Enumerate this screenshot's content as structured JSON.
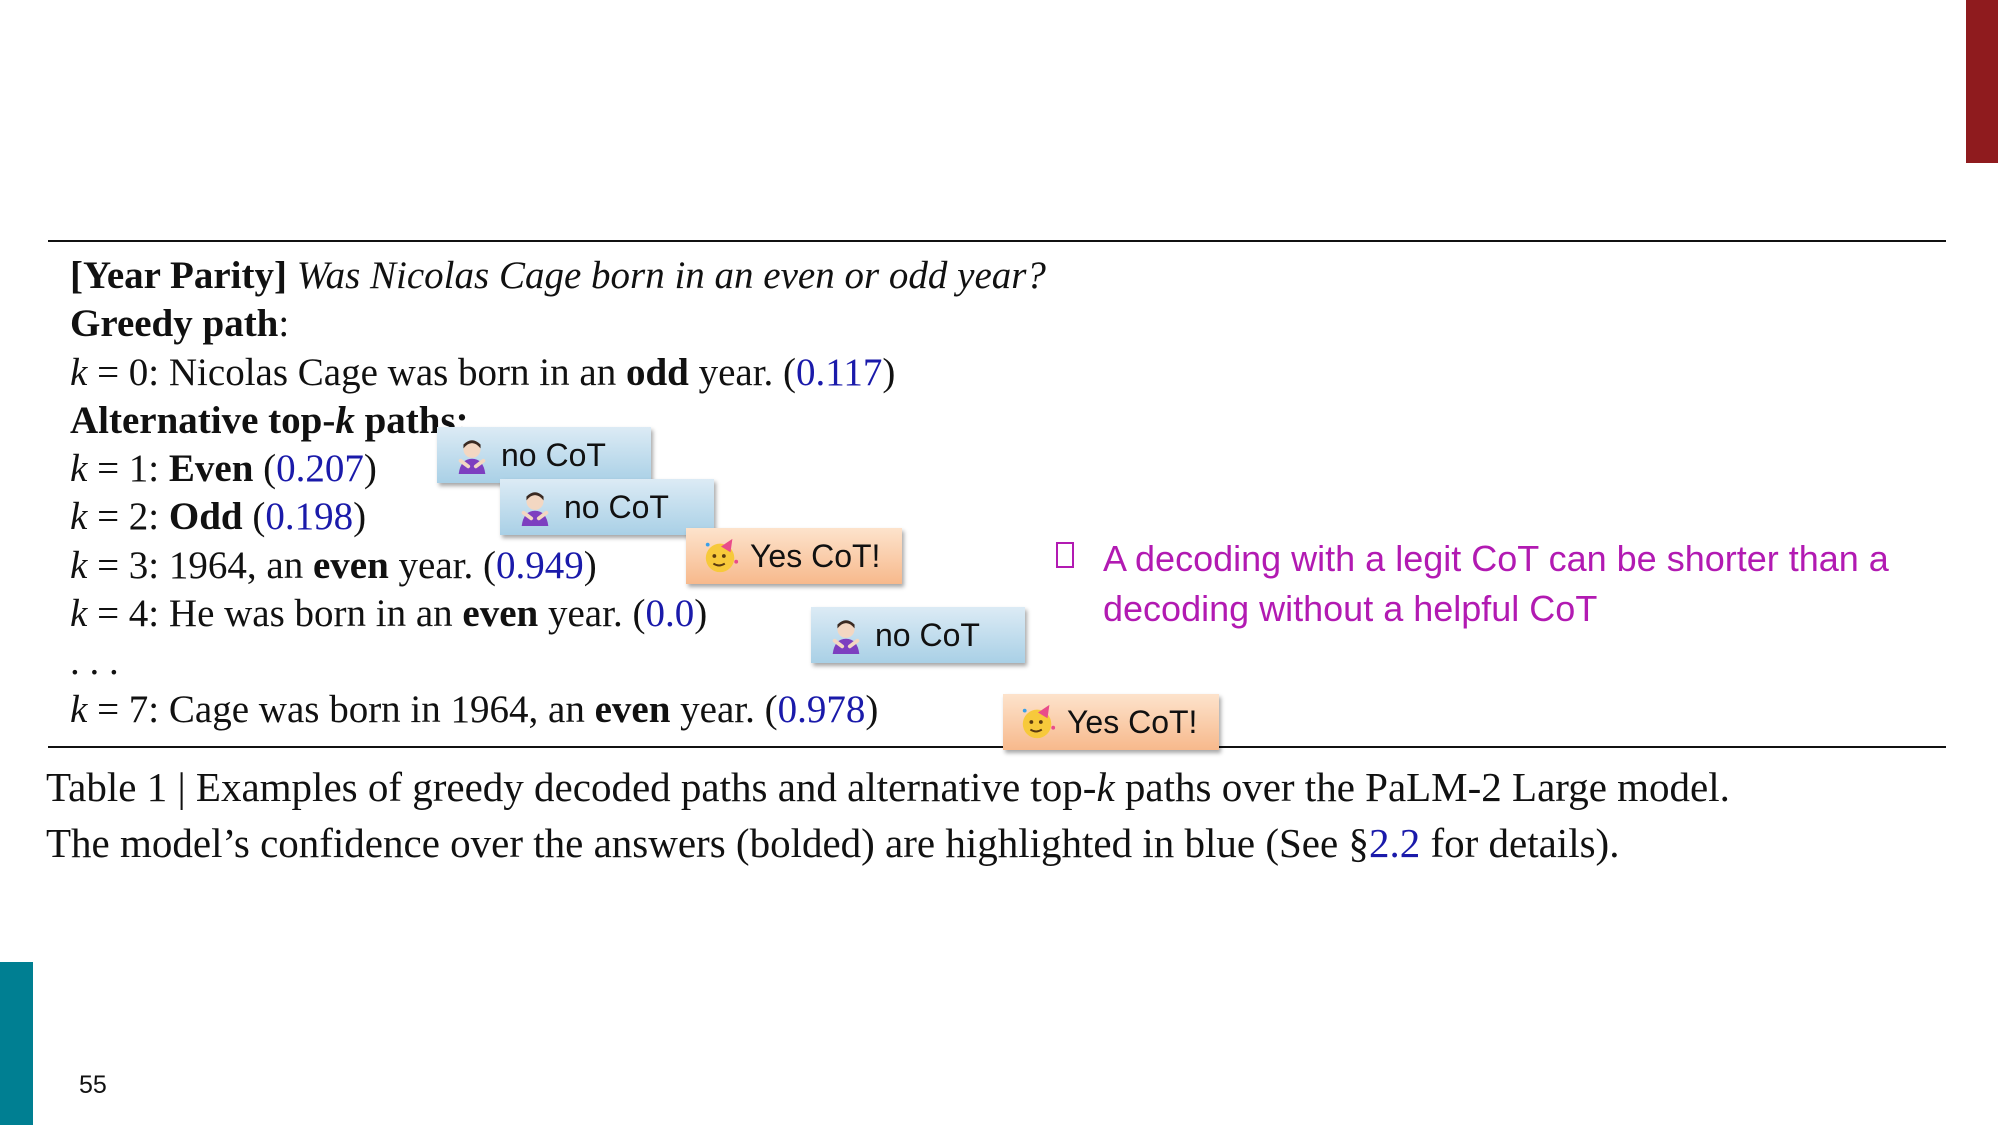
{
  "slide": {
    "page_number": "55"
  },
  "table": {
    "title_tag": "[Year Parity]",
    "question": "Was Nicolas Cage born in an even or odd year?",
    "greedy_label": "Greedy path",
    "greedy_colon": ":",
    "greedy": {
      "k": "k",
      "eq": " = 0: Nicolas Cage was born in an ",
      "answer": "odd",
      "rest": " year. (",
      "score": "0.117",
      "close": ")"
    },
    "alt_label_a": "Alternative top-",
    "alt_label_k": "k",
    "alt_label_b": " paths:",
    "rows": [
      {
        "k": "k",
        "eq": " = 1: ",
        "pre": "",
        "answer": "Even",
        "post": " (",
        "score": "0.207",
        "close": ")"
      },
      {
        "k": "k",
        "eq": " = 2: ",
        "pre": "",
        "answer": "Odd",
        "post": " (",
        "score": "0.198",
        "close": ")"
      },
      {
        "k": "k",
        "eq": " = 3: ",
        "pre": "1964, an ",
        "answer": "even",
        "post": " year. (",
        "score": "0.949",
        "close": ")"
      },
      {
        "k": "k",
        "eq": " = 4: ",
        "pre": "He was born in an ",
        "answer": "even",
        "post": " year. (",
        "score": "0.0",
        "close": ")"
      },
      {
        "k": "k",
        "eq": " = 7: ",
        "pre": "Cage was born in 1964, an ",
        "answer": "even",
        "post": " year. (",
        "score": "0.978",
        "close": ")"
      }
    ],
    "ellipsis": ". . ."
  },
  "caption": {
    "line1_a": "Table 1 | Examples of greedy decoded paths and alternative top-",
    "line1_k": "k",
    "line1_b": " paths over the PaLM-2 Large model.",
    "line2_a": "The model’s confidence over the answers (bolded) are highlighted in blue (See §",
    "line2_ref": "2.2",
    "line2_b": " for details)."
  },
  "stickers": {
    "no_cot": "no CoT",
    "yes_cot": "Yes CoT!",
    "no_icon": "shrugging-person-icon",
    "yes_icon": "party-face-icon"
  },
  "note": {
    "text": "A decoding with a legit CoT can be shorter than a decoding without a helpful CoT"
  },
  "colors": {
    "answer_score": "#1a1aaa",
    "note": "#b21ab2",
    "accent_red": "#8f1b1e",
    "accent_teal": "#007f92"
  }
}
